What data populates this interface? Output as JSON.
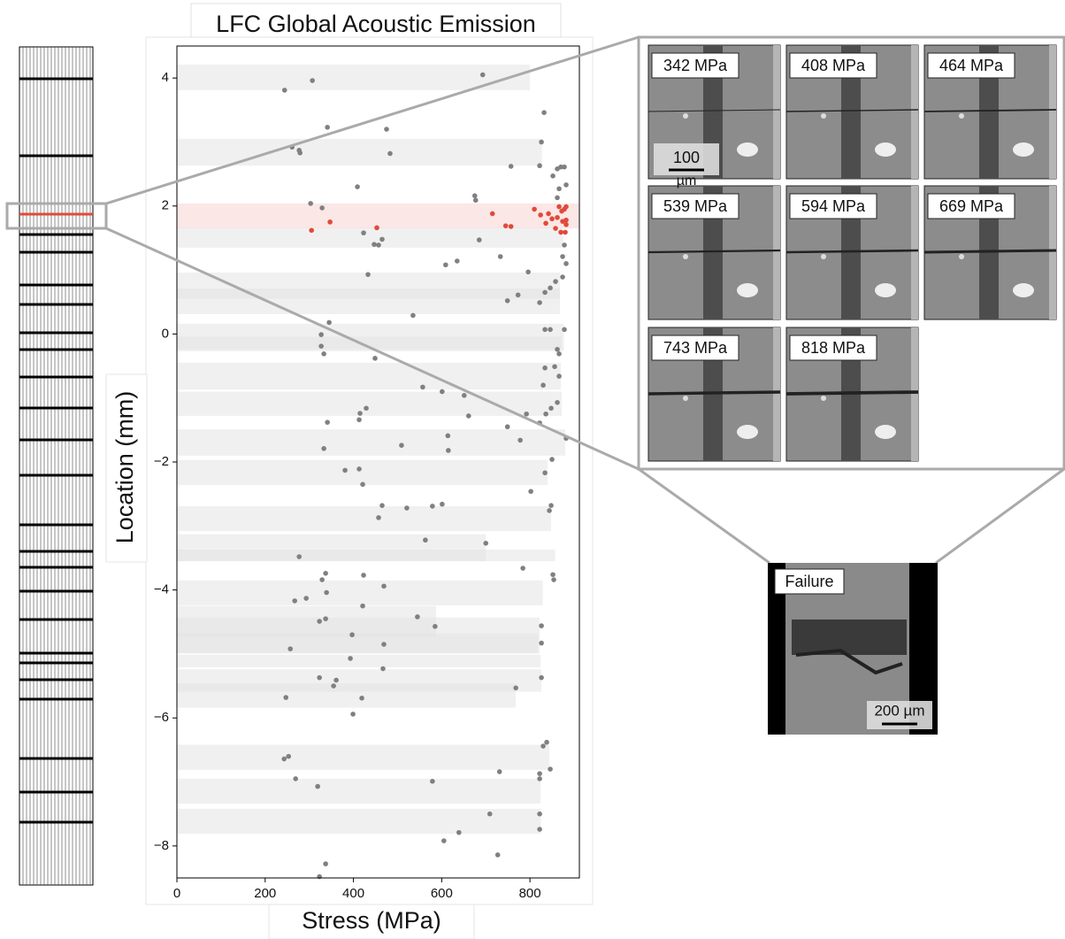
{
  "chart_data": {
    "type": "scatter",
    "title": "LFC Global Acoustic Emission",
    "xlabel": "Stress (MPa)",
    "ylabel": "Location (mm)",
    "xlim": [
      0,
      912
    ],
    "ylim": [
      -8.5,
      4.5
    ],
    "xticks": [
      0,
      200,
      400,
      600,
      800
    ],
    "yticks": [
      {
        "value": -8,
        "label": "−8"
      },
      {
        "value": -6,
        "label": "−6"
      },
      {
        "value": -4,
        "label": "−4"
      },
      {
        "value": -2,
        "label": "−2"
      },
      0,
      2,
      4
    ],
    "band_color": "#e4e4e4",
    "bands": [
      {
        "y": [
          3.81,
          4.21
        ],
        "x": 800
      },
      {
        "y": [
          2.63,
          3.05
        ],
        "x": 827
      },
      {
        "y": [
          1.65,
          2.04
        ],
        "x": 912,
        "color": "#f7d4d2"
      },
      {
        "y": [
          1.35,
          1.66
        ],
        "x": 875
      },
      {
        "y": [
          0.31,
          0.96
        ],
        "x": 868
      },
      {
        "y": [
          0.55,
          0.71
        ],
        "x": 868
      },
      {
        "y": [
          -0.27,
          0.16
        ],
        "x": 877
      },
      {
        "y": [
          -0.24,
          -0.04
        ],
        "x": 872
      },
      {
        "y": [
          -0.87,
          -0.45
        ],
        "x": 870
      },
      {
        "y": [
          -1.28,
          -0.9
        ],
        "x": 872
      },
      {
        "y": [
          -1.9,
          -1.49
        ],
        "x": 880
      },
      {
        "y": [
          -2.36,
          -1.97
        ],
        "x": 840
      },
      {
        "y": [
          -3.08,
          -2.69
        ],
        "x": 848
      },
      {
        "y": [
          -3.55,
          -3.13
        ],
        "x": 700
      },
      {
        "y": [
          -3.55,
          -3.37
        ],
        "x": 857
      },
      {
        "y": [
          -4.24,
          -3.85
        ],
        "x": 829
      },
      {
        "y": [
          -4.74,
          -4.25
        ],
        "x": 587
      },
      {
        "y": [
          -4.99,
          -4.43
        ],
        "x": 822
      },
      {
        "y": [
          -4.99,
          -4.68
        ],
        "x": 818
      },
      {
        "y": [
          -5.21,
          -5.01
        ],
        "x": 824
      },
      {
        "y": [
          -5.59,
          -5.24
        ],
        "x": 826
      },
      {
        "y": [
          -5.84,
          -5.46
        ],
        "x": 768
      },
      {
        "y": [
          -6.81,
          -6.42
        ],
        "x": 844
      },
      {
        "y": [
          -7.34,
          -6.95
        ],
        "x": 824
      },
      {
        "y": [
          -7.81,
          -7.42
        ],
        "x": 825
      }
    ],
    "series": [
      {
        "color": "#808080",
        "x": [
          693,
          307,
          244,
          341,
          475,
          483,
          261,
          277,
          279,
          409,
          303,
          329,
          423,
          447,
          457,
          465,
          433,
          635,
          609,
          733,
          685,
          675,
          677,
          757,
          822,
          826,
          832,
          796,
          535,
          345,
          327,
          327,
          333,
          449,
          341,
          333,
          557,
          601,
          651,
          429,
          415,
          413,
          661,
          749,
          509,
          614,
          615,
          778,
          413,
          381,
          421,
          465,
          457,
          521,
          579,
          601,
          563,
          700,
          277,
          337,
          329,
          423,
          469,
          784,
          339,
          293,
          267,
          421,
          545,
          337,
          323,
          585,
          397,
          257,
          469,
          393,
          323,
          361,
          355,
          467,
          247,
          419,
          768,
          399,
          243,
          253,
          269,
          319,
          579,
          731,
          709,
          639,
          605,
          727,
          337,
          323,
          862,
          870,
          878,
          882,
          866,
          852,
          862,
          878,
          874,
          882,
          874,
          858,
          846,
          834,
          822,
          749,
          773,
          834,
          846,
          878,
          862,
          866,
          834,
          856,
          866,
          830,
          862,
          848,
          836,
          822,
          792,
          850,
          834,
          802,
          848,
          844,
          852,
          854,
          826,
          826,
          826,
          830,
          838,
          846,
          822,
          822,
          822,
          822,
          882
        ],
        "values": [
          4.05,
          3.96,
          3.81,
          3.23,
          3.2,
          2.82,
          2.92,
          2.87,
          2.83,
          2.3,
          2.04,
          1.97,
          1.58,
          1.4,
          1.39,
          1.48,
          0.93,
          1.14,
          1.08,
          1.21,
          1.47,
          2.16,
          2.09,
          2.62,
          2.63,
          3.0,
          3.46,
          0.97,
          0.29,
          0.18,
          -0.01,
          -0.19,
          -0.31,
          -0.38,
          -1.38,
          -1.79,
          -0.83,
          -0.9,
          -0.96,
          -1.16,
          -1.24,
          -1.34,
          -1.28,
          -1.45,
          -1.74,
          -1.59,
          -1.82,
          -1.66,
          -2.11,
          -2.13,
          -2.35,
          -2.68,
          -2.87,
          -2.72,
          -2.69,
          -2.66,
          -3.22,
          -3.27,
          -3.48,
          -3.74,
          -3.84,
          -3.77,
          -3.94,
          -3.66,
          -4.04,
          -4.13,
          -4.17,
          -4.25,
          -4.42,
          -4.45,
          -4.49,
          -4.57,
          -4.7,
          -4.92,
          -4.85,
          -5.07,
          -5.37,
          -5.41,
          -5.5,
          -5.23,
          -5.68,
          -5.69,
          -5.53,
          -5.94,
          -6.64,
          -6.6,
          -6.95,
          -7.07,
          -6.99,
          -6.84,
          -7.5,
          -7.79,
          -7.92,
          -8.14,
          -8.28,
          -8.48,
          2.58,
          2.61,
          2.61,
          2.33,
          2.27,
          2.47,
          2.13,
          1.39,
          1.21,
          1.1,
          0.89,
          0.82,
          0.72,
          0.65,
          0.49,
          0.52,
          0.61,
          0.07,
          0.07,
          0.07,
          -0.24,
          -0.31,
          -0.53,
          -0.51,
          -0.66,
          -0.8,
          -1.07,
          -1.16,
          -1.25,
          -1.39,
          -1.25,
          -1.96,
          -2.17,
          -2.46,
          -2.68,
          -2.76,
          -3.76,
          -3.84,
          -4.56,
          -4.83,
          -5.37,
          -6.44,
          -6.38,
          -6.8,
          -6.87,
          -6.95,
          -7.5,
          -7.74,
          -1.63
        ]
      },
      {
        "color": "#e04a3a",
        "x": [
          305,
          347,
          453,
          715,
          745,
          757,
          810,
          824,
          836,
          842,
          850,
          858,
          862,
          870,
          874,
          878,
          882,
          882,
          872,
          880,
          866,
          882
        ],
        "values": [
          1.62,
          1.75,
          1.66,
          1.88,
          1.69,
          1.68,
          1.95,
          1.86,
          1.73,
          1.88,
          1.8,
          1.65,
          1.82,
          1.59,
          1.76,
          1.95,
          1.99,
          1.78,
          1.92,
          1.59,
          1.99,
          1.71
        ]
      }
    ]
  },
  "micrographs": [
    {
      "label": "342 MPa"
    },
    {
      "label": "408 MPa"
    },
    {
      "label": "464 MPa"
    },
    {
      "label": "539 MPa"
    },
    {
      "label": "594 MPa"
    },
    {
      "label": "669 MPa"
    },
    {
      "label": "743 MPa"
    },
    {
      "label": "818 MPa"
    }
  ],
  "scale_bar": {
    "number": "100",
    "unit": "µm"
  },
  "failure": {
    "label": "Failure",
    "scale_bar": "200 µm"
  }
}
